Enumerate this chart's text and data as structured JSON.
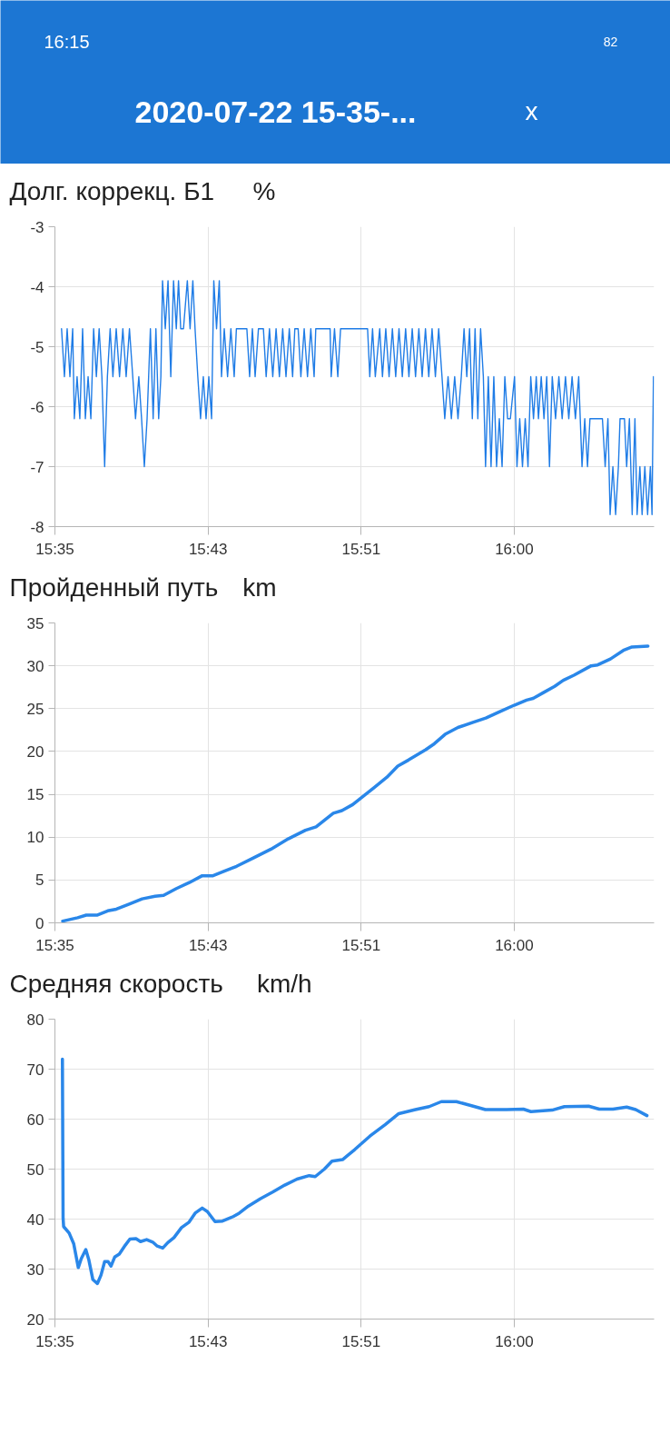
{
  "chart_data": [
    {
      "type": "other",
      "title": "2020-07-22 15-35-...",
      "annotations": [
        "16:15",
        "82",
        "x"
      ]
    },
    {
      "type": "line",
      "title": "Долг. коррекц. Б1",
      "ylabel": "%",
      "xlim": [
        15.5778,
        16.1213
      ],
      "ylim": [
        -8,
        -3
      ],
      "xticks": [
        {
          "value": 15.5778,
          "label": "15:35"
        },
        {
          "value": 15.7167,
          "label": "15:43"
        },
        {
          "value": 15.8556,
          "label": "15:51"
        },
        {
          "value": 15.9944,
          "label": "16:00"
        }
      ],
      "yticks": [
        -8,
        -7,
        -6,
        -5,
        -4,
        -3
      ],
      "grid": true,
      "series": [
        {
          "color": "#1f7ce6",
          "x": [
            15.5838,
            15.5864,
            15.5889,
            15.5914,
            15.5939,
            15.5954,
            15.5979,
            15.6004,
            15.6029,
            15.6054,
            15.6079,
            15.6104,
            15.6129,
            15.6154,
            15.6179,
            15.6204,
            15.6229,
            15.6254,
            15.6279,
            15.6304,
            15.6334,
            15.6364,
            15.6394,
            15.6424,
            15.6454,
            15.6484,
            15.6509,
            15.6539,
            15.6564,
            15.6589,
            15.6614,
            15.6644,
            15.6669,
            15.6694,
            15.6719,
            15.6739,
            15.6754,
            15.6779,
            15.6804,
            15.6829,
            15.6854,
            15.6879,
            15.6899,
            15.6919,
            15.6944,
            15.6979,
            15.7004,
            15.7029,
            15.7049,
            15.7074,
            15.7099,
            15.7124,
            15.7149,
            15.7174,
            15.7199,
            15.7219,
            15.7244,
            15.7269,
            15.7289,
            15.7314,
            15.7344,
            15.7374,
            15.7404,
            15.7424,
            15.7519,
            15.7544,
            15.7569,
            15.7594,
            15.7624,
            15.7669,
            15.7694,
            15.7724,
            15.7754,
            15.7784,
            15.7814,
            15.7844,
            15.7874,
            15.7904,
            15.7934,
            15.7954,
            15.7984,
            15.8009,
            15.8039,
            15.8069,
            15.8099,
            15.8129,
            15.8144,
            15.8274,
            15.8284,
            15.8314,
            15.8344,
            15.8369,
            15.8614,
            15.8634,
            15.8659,
            15.8684,
            15.8724,
            15.8749,
            15.8779,
            15.8809,
            15.8839,
            15.8869,
            15.8899,
            15.8929,
            15.8959,
            15.8989,
            15.9019,
            15.9049,
            15.9079,
            15.9109,
            15.9139,
            15.9169,
            15.9199,
            15.9229,
            15.9259,
            15.9289,
            15.9314,
            15.9344,
            15.9374,
            15.9404,
            15.9434,
            15.9464,
            15.9489,
            15.9514,
            15.9539,
            15.9564,
            15.9589,
            15.9614,
            15.9639,
            15.9664,
            15.9684,
            15.9709,
            15.9734,
            15.9759,
            15.9784,
            15.9809,
            15.9834,
            15.9859,
            15.9884,
            15.9909,
            15.9947,
            15.9969,
            15.9994,
            16.0019,
            16.0044,
            16.0069,
            16.0094,
            16.0119,
            16.0144,
            16.0164,
            16.0189,
            16.0214,
            16.0239,
            16.0264,
            16.0289,
            16.0319,
            16.0349,
            16.0379,
            16.0409,
            16.0439,
            16.0469,
            16.0499,
            16.0529,
            16.0559,
            16.0584,
            16.0609,
            16.0631,
            16.0744,
            16.0769,
            16.0794,
            16.0814,
            16.0839,
            16.0864,
            16.0889,
            16.0904,
            16.0944,
            16.0964,
            16.0989,
            16.1014,
            16.1039,
            16.1059,
            16.1084,
            16.1104,
            16.1129,
            16.1154,
            16.1179,
            16.1194,
            16.1207
          ],
          "values": [
            -4.7,
            -5.5,
            -4.7,
            -5.5,
            -4.7,
            -6.2,
            -5.5,
            -6.2,
            -4.7,
            -6.2,
            -5.5,
            -6.2,
            -4.7,
            -5.5,
            -4.7,
            -5.5,
            -7.0,
            -5.5,
            -4.7,
            -5.5,
            -4.7,
            -5.5,
            -4.7,
            -5.5,
            -4.7,
            -5.5,
            -6.2,
            -5.5,
            -6.2,
            -7.0,
            -6.2,
            -4.7,
            -6.2,
            -4.7,
            -6.2,
            -5.5,
            -3.9,
            -4.7,
            -3.9,
            -5.5,
            -3.9,
            -4.7,
            -3.9,
            -4.7,
            -4.7,
            -3.9,
            -4.7,
            -3.9,
            -4.7,
            -5.5,
            -6.2,
            -5.5,
            -6.2,
            -5.5,
            -6.2,
            -3.9,
            -4.7,
            -3.9,
            -5.5,
            -4.7,
            -5.5,
            -4.7,
            -5.5,
            -4.7,
            -4.7,
            -5.5,
            -4.7,
            -5.5,
            -4.7,
            -4.7,
            -5.5,
            -4.7,
            -5.5,
            -4.7,
            -5.5,
            -4.7,
            -5.5,
            -4.7,
            -5.5,
            -4.7,
            -4.7,
            -5.5,
            -4.7,
            -5.5,
            -4.7,
            -5.5,
            -4.7,
            -4.7,
            -5.5,
            -4.7,
            -5.5,
            -4.7,
            -4.7,
            -5.5,
            -4.7,
            -5.5,
            -4.7,
            -5.5,
            -4.7,
            -5.5,
            -4.7,
            -5.5,
            -4.7,
            -5.5,
            -4.7,
            -5.5,
            -4.7,
            -5.5,
            -4.7,
            -5.5,
            -4.7,
            -5.5,
            -4.7,
            -5.5,
            -4.7,
            -5.5,
            -6.2,
            -5.5,
            -6.2,
            -5.5,
            -6.2,
            -5.5,
            -4.7,
            -5.5,
            -4.7,
            -6.2,
            -4.7,
            -6.2,
            -4.7,
            -5.5,
            -7.0,
            -5.5,
            -7.0,
            -5.5,
            -7.0,
            -6.2,
            -7.0,
            -5.5,
            -6.2,
            -6.2,
            -5.5,
            -7.0,
            -6.2,
            -7.0,
            -6.2,
            -7.0,
            -5.5,
            -6.2,
            -5.5,
            -6.2,
            -5.5,
            -6.2,
            -5.5,
            -7.0,
            -5.5,
            -6.2,
            -5.5,
            -6.2,
            -5.5,
            -6.2,
            -5.5,
            -6.2,
            -5.5,
            -7.0,
            -6.2,
            -7.0,
            -6.2,
            -6.2,
            -7.0,
            -6.2,
            -7.8,
            -7.0,
            -7.8,
            -7.0,
            -6.2,
            -6.2,
            -7.0,
            -6.2,
            -7.8,
            -6.2,
            -7.8,
            -7.0,
            -7.8,
            -7.0,
            -7.8,
            -7.0,
            -7.8,
            -5.5
          ]
        }
      ]
    },
    {
      "type": "line",
      "title": "Пройденный путь",
      "ylabel": "km",
      "xlim": [
        15.5778,
        16.1213
      ],
      "ylim": [
        0,
        35
      ],
      "xticks": [
        {
          "value": 15.5778,
          "label": "15:35"
        },
        {
          "value": 15.7167,
          "label": "15:43"
        },
        {
          "value": 15.8556,
          "label": "15:51"
        },
        {
          "value": 15.9944,
          "label": "16:00"
        }
      ],
      "yticks": [
        0,
        5,
        10,
        15,
        20,
        25,
        30,
        35
      ],
      "grid": true,
      "series": [
        {
          "color": "#2a87e9",
          "x": [
            15.5848,
            15.5984,
            15.6062,
            15.6159,
            15.6257,
            15.6335,
            15.6452,
            15.6569,
            15.6686,
            15.6764,
            15.688,
            15.6997,
            15.7114,
            15.7212,
            15.7309,
            15.7426,
            15.7582,
            15.7738,
            15.7894,
            15.805,
            15.8147,
            15.8225,
            15.8303,
            15.8381,
            15.8479,
            15.8557,
            15.8674,
            15.879,
            15.8888,
            15.8985,
            15.9141,
            15.9219,
            15.9317,
            15.9434,
            15.957,
            15.9687,
            15.9804,
            15.9944,
            16.0057,
            16.0116,
            16.0213,
            16.0311,
            16.0389,
            16.0486,
            16.0642,
            16.0701,
            16.0817,
            16.0934,
            16.1012,
            16.1157
          ],
          "values": [
            0.2,
            0.6,
            0.9,
            0.9,
            1.4,
            1.6,
            2.2,
            2.8,
            3.1,
            3.2,
            4.0,
            4.7,
            5.5,
            5.5,
            6.0,
            6.6,
            7.6,
            8.6,
            9.8,
            10.8,
            11.2,
            12.0,
            12.8,
            13.1,
            13.8,
            14.6,
            15.8,
            17.0,
            18.3,
            19.0,
            20.2,
            20.9,
            22.0,
            22.8,
            23.4,
            23.9,
            24.6,
            25.4,
            26.0,
            26.2,
            26.9,
            27.6,
            28.3,
            28.9,
            30.0,
            30.1,
            30.8,
            31.8,
            32.2,
            32.3
          ]
        }
      ]
    },
    {
      "type": "line",
      "title": "Средняя скорость",
      "ylabel": "km/h",
      "xlim": [
        15.5778,
        16.1213
      ],
      "ylim": [
        20,
        80
      ],
      "xticks": [
        {
          "value": 15.5778,
          "label": "15:35"
        },
        {
          "value": 15.7167,
          "label": "15:43"
        },
        {
          "value": 15.8556,
          "label": "15:51"
        },
        {
          "value": 15.9944,
          "label": "16:00"
        }
      ],
      "yticks": [
        20,
        30,
        40,
        50,
        60,
        70,
        80
      ],
      "grid": true,
      "series": [
        {
          "color": "#2a87e9",
          "x": [
            15.5846,
            15.5852,
            15.5857,
            15.5907,
            15.5948,
            15.599,
            15.6017,
            15.6058,
            15.6086,
            15.6122,
            15.6163,
            15.6196,
            15.6229,
            15.626,
            15.6287,
            15.632,
            15.6362,
            15.6417,
            15.6458,
            15.6513,
            15.6554,
            15.661,
            15.6665,
            15.6706,
            15.6756,
            15.6802,
            15.6858,
            15.6926,
            15.6995,
            15.705,
            15.7114,
            15.7161,
            15.723,
            15.7298,
            15.7395,
            15.745,
            15.7533,
            15.7643,
            15.7753,
            15.7863,
            15.7974,
            15.8084,
            15.8139,
            15.8222,
            15.8291,
            15.8387,
            15.8497,
            15.8635,
            15.8773,
            15.8897,
            15.9048,
            15.9172,
            15.9283,
            15.942,
            15.9572,
            15.9682,
            15.9875,
            16.0027,
            16.0096,
            16.0288,
            16.0399,
            16.0619,
            16.0716,
            16.084,
            16.0964,
            16.1046,
            16.1148
          ],
          "values": [
            72.0,
            40.2,
            38.5,
            37.2,
            35.1,
            30.3,
            32.1,
            33.9,
            31.8,
            27.9,
            27.1,
            28.8,
            31.5,
            31.5,
            30.6,
            32.4,
            33.0,
            34.8,
            36.0,
            36.1,
            35.5,
            35.9,
            35.4,
            34.6,
            34.2,
            35.3,
            36.3,
            38.3,
            39.4,
            41.2,
            42.2,
            41.5,
            39.5,
            39.6,
            40.5,
            41.2,
            42.6,
            44.1,
            45.4,
            46.8,
            48.0,
            48.7,
            48.5,
            50.0,
            51.6,
            51.9,
            53.9,
            56.6,
            58.9,
            61.1,
            61.9,
            62.5,
            63.5,
            63.5,
            62.6,
            61.9,
            61.9,
            62.0,
            61.5,
            61.8,
            62.5,
            62.6,
            62.0,
            62.0,
            62.4,
            61.9,
            60.7
          ]
        }
      ]
    }
  ]
}
